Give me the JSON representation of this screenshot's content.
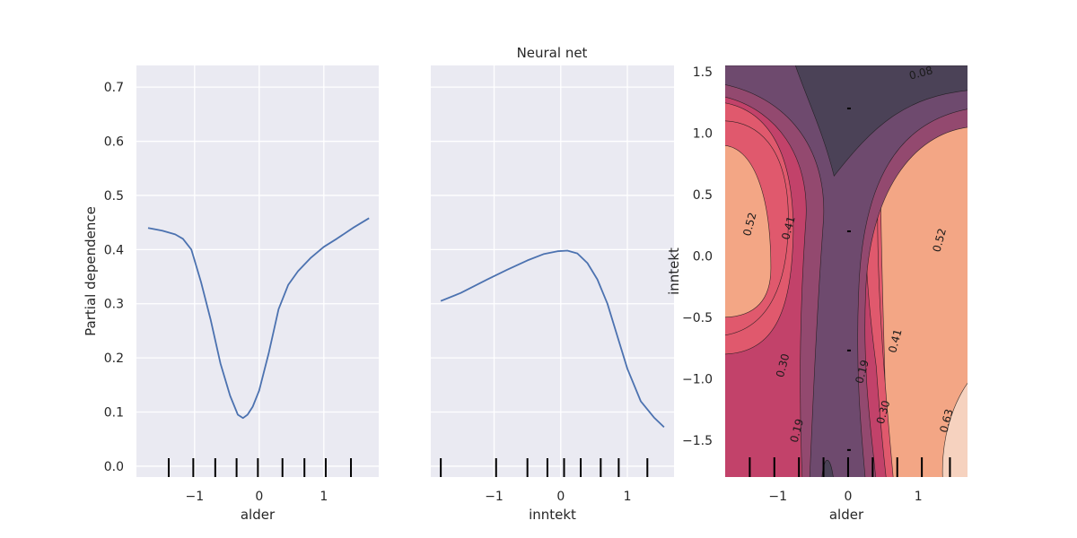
{
  "suptitle": "Neural net",
  "colors": {
    "panel_bg": "#eaeaf2",
    "grid": "#ffffff",
    "line": "#4c72b0",
    "rug": "#000000",
    "contour_levels": [
      "#4b4257",
      "#6e4a6e",
      "#93496f",
      "#c2426a",
      "#e0596d",
      "#ec7b6e",
      "#f3a685",
      "#f6d2bf",
      "#f7e2d2"
    ]
  },
  "chart_data": [
    {
      "type": "line",
      "xlabel": "alder",
      "ylabel": "Partial dependence",
      "xlim": [
        -1.9,
        1.85
      ],
      "ylim": [
        -0.02,
        0.74
      ],
      "xticks": [
        -1,
        0,
        1
      ],
      "yticks": [
        0.0,
        0.1,
        0.2,
        0.3,
        0.4,
        0.5,
        0.6,
        0.7
      ],
      "xtick_labels": [
        "−1",
        "0",
        "1"
      ],
      "ytick_labels": [
        "0.0",
        "0.1",
        "0.2",
        "0.3",
        "0.4",
        "0.5",
        "0.6",
        "0.7"
      ],
      "x": [
        -1.72,
        -1.5,
        -1.3,
        -1.18,
        -1.05,
        -0.9,
        -0.75,
        -0.6,
        -0.45,
        -0.33,
        -0.25,
        -0.18,
        -0.1,
        0.0,
        0.15,
        0.3,
        0.45,
        0.6,
        0.8,
        1.0,
        1.2,
        1.45,
        1.7
      ],
      "y": [
        0.44,
        0.435,
        0.428,
        0.42,
        0.4,
        0.34,
        0.27,
        0.19,
        0.13,
        0.095,
        0.089,
        0.095,
        0.11,
        0.14,
        0.21,
        0.29,
        0.335,
        0.36,
        0.385,
        0.405,
        0.42,
        0.44,
        0.458
      ],
      "rug": [
        -1.4,
        -1.02,
        -0.68,
        -0.35,
        -0.02,
        0.36,
        0.7,
        1.03,
        1.42
      ]
    },
    {
      "type": "line",
      "xlabel": "inntekt",
      "ylabel": "",
      "xlim": [
        -1.95,
        1.7
      ],
      "ylim": [
        -0.02,
        0.74
      ],
      "xticks": [
        -1,
        0,
        1
      ],
      "yticks": [
        0.0,
        0.1,
        0.2,
        0.3,
        0.4,
        0.5,
        0.6,
        0.7
      ],
      "xtick_labels": [
        "−1",
        "0",
        "1"
      ],
      "x": [
        -1.8,
        -1.5,
        -1.1,
        -0.8,
        -0.5,
        -0.25,
        -0.05,
        0.1,
        0.25,
        0.4,
        0.55,
        0.7,
        0.85,
        1.0,
        1.2,
        1.4,
        1.55
      ],
      "y": [
        0.305,
        0.32,
        0.345,
        0.363,
        0.38,
        0.392,
        0.397,
        0.398,
        0.393,
        0.375,
        0.345,
        0.3,
        0.24,
        0.18,
        0.12,
        0.09,
        0.072
      ],
      "rug": [
        -1.8,
        -0.97,
        -0.5,
        -0.2,
        0.05,
        0.3,
        0.6,
        0.87,
        1.3
      ]
    },
    {
      "type": "heatmap",
      "subtype": "contour",
      "xlabel": "alder",
      "ylabel": "inntekt",
      "xlim": [
        -1.75,
        1.7
      ],
      "ylim": [
        -1.8,
        1.55
      ],
      "xticks": [
        -1,
        0,
        1
      ],
      "yticks": [
        1.5,
        1.0,
        0.5,
        0.0,
        -0.5,
        -1.0,
        -1.5
      ],
      "xtick_labels": [
        "−1",
        "0",
        "1"
      ],
      "ytick_labels": [
        "1.5",
        "1.0",
        "0.5",
        "0.0",
        "−0.5",
        "−1.0",
        "−1.5"
      ],
      "contour_labels": [
        {
          "text": "0.08",
          "x": 1.05,
          "y": 1.46
        },
        {
          "text": "0.52",
          "x": -1.35,
          "y": 0.25
        },
        {
          "text": "0.41",
          "x": -0.8,
          "y": 0.22
        },
        {
          "text": "0.52",
          "x": 1.35,
          "y": 0.12
        },
        {
          "text": "0.41",
          "x": 0.72,
          "y": -0.7
        },
        {
          "text": "0.30",
          "x": -0.88,
          "y": -0.9
        },
        {
          "text": "0.19",
          "x": 0.25,
          "y": -0.95
        },
        {
          "text": "0.30",
          "x": 0.55,
          "y": -1.28
        },
        {
          "text": "0.63",
          "x": 1.45,
          "y": -1.35
        },
        {
          "text": "0.19",
          "x": -0.68,
          "y": -1.43
        }
      ],
      "rug_x": [
        -1.4,
        -1.05,
        -0.7,
        -0.35,
        0.0,
        0.35,
        0.7,
        1.05,
        1.45
      ],
      "rug_y": [
        1.2,
        0.2,
        -0.77,
        -1.58
      ]
    }
  ]
}
